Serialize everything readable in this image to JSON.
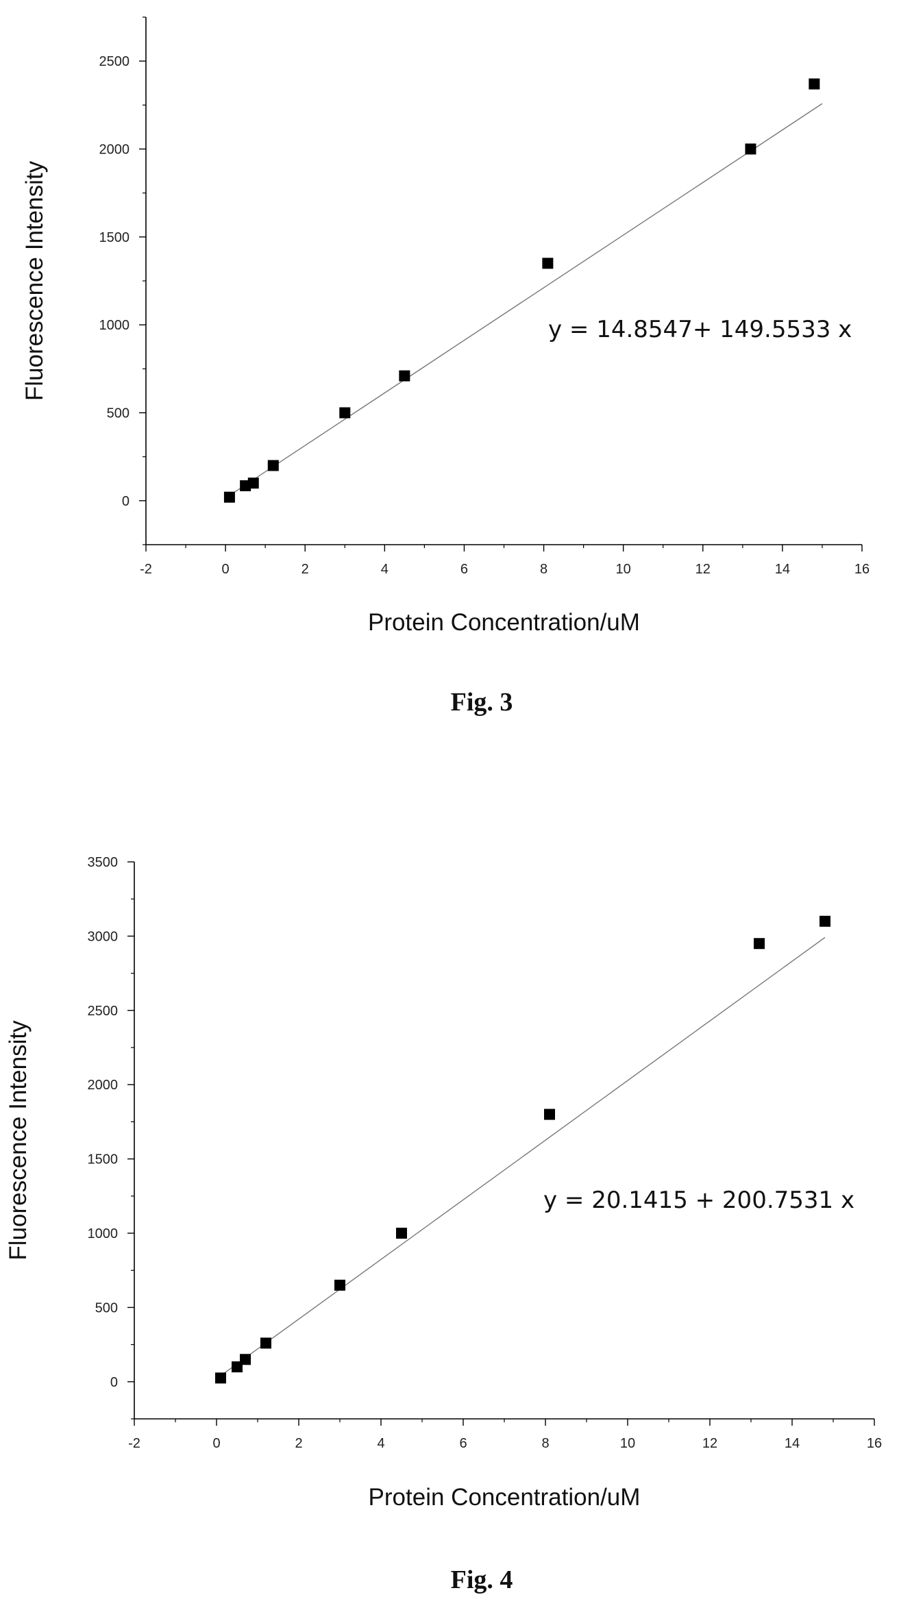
{
  "chart_data": [
    {
      "type": "scatter",
      "caption": "Fig. 3",
      "xlabel": "Protein Concentration/uM",
      "ylabel": "Fluorescence Intensity",
      "xlim": [
        -2,
        16
      ],
      "ylim": [
        -250,
        2750
      ],
      "xticks": [
        -2,
        0,
        2,
        4,
        6,
        8,
        10,
        12,
        14,
        16
      ],
      "yticks": [
        0,
        500,
        1000,
        1500,
        2000,
        2500
      ],
      "grid": false,
      "series": [
        {
          "x": [
            0.1,
            0.5,
            0.7,
            1.2,
            3.0,
            4.5,
            8.1,
            13.2,
            14.8
          ],
          "y": [
            20,
            85,
            100,
            200,
            500,
            710,
            1350,
            2000,
            2370
          ]
        }
      ],
      "fit": {
        "intercept": 14.8547,
        "slope": 149.5533,
        "x_range": [
          0.1,
          15.0
        ]
      },
      "annotation": "y = 14.8547+ 149.5533 x"
    },
    {
      "type": "scatter",
      "caption": "Fig. 4",
      "xlabel": "Protein Concentration/uM",
      "ylabel": "Fluorescence Intensity",
      "xlim": [
        -2,
        16
      ],
      "ylim": [
        -250,
        3500
      ],
      "xticks": [
        -2,
        0,
        2,
        4,
        6,
        8,
        10,
        12,
        14,
        16
      ],
      "yticks": [
        0,
        500,
        1000,
        1500,
        2000,
        2500,
        3000,
        3500
      ],
      "grid": false,
      "series": [
        {
          "x": [
            0.1,
            0.5,
            0.7,
            1.2,
            3.0,
            4.5,
            8.1,
            13.2,
            14.8
          ],
          "y": [
            25,
            100,
            150,
            260,
            650,
            1000,
            1800,
            2950,
            3100
          ]
        }
      ],
      "fit": {
        "intercept": 20.1415,
        "slope": 200.7531,
        "x_range": [
          0.1,
          14.8
        ]
      },
      "annotation": "y = 20.1415 + 200.7531 x"
    }
  ]
}
